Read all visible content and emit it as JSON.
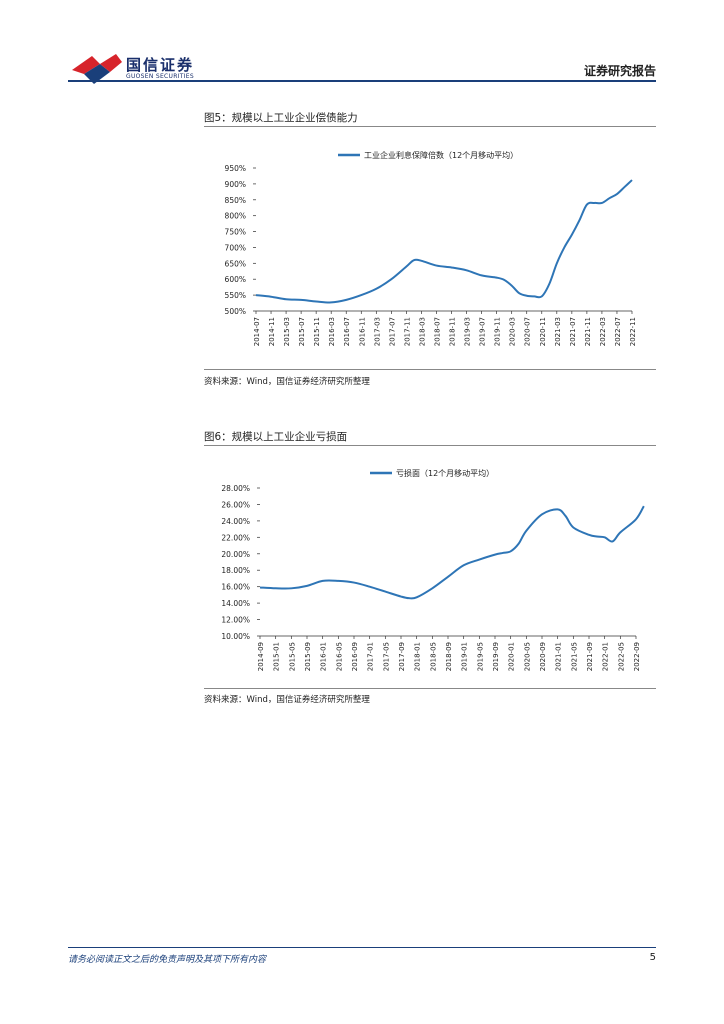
{
  "header": {
    "logo_cn": "国信证券",
    "logo_en": "GUOSEN SECURITIES",
    "report_type": "证券研究报告"
  },
  "figures": [
    {
      "title": "图5：规模以上工业企业偿债能力",
      "source": "资料来源：Wind，国信证券经济研究所整理"
    },
    {
      "title": "图6：规模以上工业企业亏损面",
      "source": "资料来源：Wind，国信证券经济研究所整理"
    }
  ],
  "chart_data": [
    {
      "type": "line",
      "legend_position": "top",
      "grid": false,
      "ylim": [
        500,
        950
      ],
      "yticks": [
        "950%",
        "900%",
        "850%",
        "800%",
        "750%",
        "700%",
        "650%",
        "600%",
        "550%",
        "500%"
      ],
      "xticks": [
        "2014-07",
        "2014-11",
        "2015-03",
        "2015-07",
        "2015-11",
        "2016-03",
        "2016-07",
        "2016-11",
        "2017-03",
        "2017-07",
        "2017-11",
        "2018-03",
        "2018-07",
        "2018-11",
        "2019-03",
        "2019-07",
        "2019-11",
        "2020-03",
        "2020-07",
        "2020-11",
        "2021-03",
        "2021-07",
        "2021-11",
        "2022-03",
        "2022-07",
        "2022-11"
      ],
      "series": [
        {
          "name": "工业企业利息保障倍数（12个月移动平均）",
          "color": "#2e75b6",
          "x": [
            "2014-07",
            "2014-11",
            "2015-03",
            "2015-07",
            "2015-11",
            "2016-03",
            "2016-07",
            "2016-11",
            "2017-03",
            "2017-07",
            "2017-11",
            "2018-01",
            "2018-03",
            "2018-07",
            "2018-11",
            "2019-03",
            "2019-07",
            "2019-11",
            "2020-01",
            "2020-03",
            "2020-05",
            "2020-07",
            "2020-09",
            "2020-11",
            "2021-01",
            "2021-03",
            "2021-05",
            "2021-07",
            "2021-09",
            "2021-11",
            "2022-01",
            "2022-03",
            "2022-05",
            "2022-07",
            "2022-09",
            "2022-11"
          ],
          "values": [
            550,
            545,
            537,
            535,
            530,
            527,
            535,
            550,
            570,
            600,
            640,
            660,
            658,
            643,
            637,
            628,
            612,
            605,
            598,
            580,
            556,
            548,
            546,
            546,
            585,
            650,
            700,
            740,
            785,
            835,
            840,
            840,
            855,
            868,
            890,
            912
          ]
        }
      ]
    },
    {
      "type": "line",
      "legend_position": "top",
      "grid": false,
      "ylim": [
        10,
        28
      ],
      "yticks": [
        "28.00%",
        "26.00%",
        "24.00%",
        "22.00%",
        "20.00%",
        "18.00%",
        "16.00%",
        "14.00%",
        "12.00%",
        "10.00%"
      ],
      "xticks": [
        "2014-09",
        "2015-01",
        "2015-05",
        "2015-09",
        "2016-01",
        "2016-05",
        "2016-09",
        "2017-01",
        "2017-05",
        "2017-09",
        "2018-01",
        "2018-05",
        "2018-09",
        "2019-01",
        "2019-05",
        "2019-09",
        "2020-01",
        "2020-05",
        "2020-09",
        "2021-01",
        "2021-05",
        "2021-09",
        "2022-01",
        "2022-05",
        "2022-09"
      ],
      "series": [
        {
          "name": "亏损面（12个月移动平均）",
          "color": "#2e75b6",
          "x": [
            "2014-09",
            "2015-01",
            "2015-05",
            "2015-09",
            "2016-01",
            "2016-05",
            "2016-09",
            "2017-01",
            "2017-05",
            "2017-09",
            "2017-11",
            "2018-01",
            "2018-05",
            "2018-09",
            "2019-01",
            "2019-05",
            "2019-09",
            "2019-11",
            "2020-01",
            "2020-03",
            "2020-05",
            "2020-09",
            "2021-01",
            "2021-03",
            "2021-05",
            "2021-09",
            "2021-11",
            "2022-01",
            "2022-03",
            "2022-05",
            "2022-09",
            "2022-11"
          ],
          "values": [
            15.9,
            15.8,
            15.8,
            16.1,
            16.7,
            16.7,
            16.5,
            16.0,
            15.4,
            14.8,
            14.6,
            14.7,
            15.8,
            17.2,
            18.6,
            19.3,
            19.9,
            20.1,
            20.3,
            21.2,
            22.8,
            24.8,
            25.4,
            24.6,
            23.2,
            22.3,
            22.1,
            22.0,
            21.5,
            22.6,
            24.2,
            25.8
          ]
        }
      ]
    }
  ],
  "footer": {
    "disclaimer": "请务必阅读正文之后的免责声明及其项下所有内容",
    "page_number": "5"
  }
}
